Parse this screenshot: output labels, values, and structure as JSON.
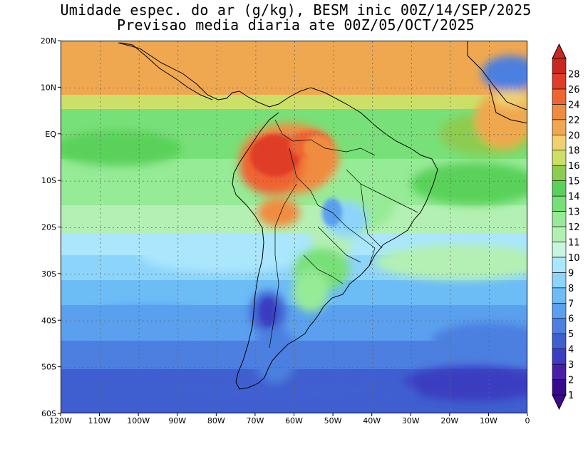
{
  "title_line1": "Umidade espec. do ar (g/kg), BESM inic 00Z/14/SEP/2025",
  "title_line2": "Previsao media diaria ate 00Z/05/OCT/2025",
  "map": {
    "lon_range": [
      -120,
      0
    ],
    "lat_range": [
      -60,
      20
    ],
    "lon_ticks": [
      "120W",
      "110W",
      "100W",
      "90W",
      "80W",
      "70W",
      "60W",
      "50W",
      "40W",
      "30W",
      "20W",
      "10W",
      "0"
    ],
    "lat_ticks": [
      "20N",
      "10N",
      "EQ",
      "10S",
      "20S",
      "30S",
      "40S",
      "50S",
      "60S"
    ],
    "gridlines": "dotted"
  },
  "colorbar": {
    "labels": [
      "1",
      "2",
      "3",
      "4",
      "5",
      "6",
      "7",
      "8",
      "9",
      "10",
      "11",
      "12",
      "13",
      "14",
      "15",
      "16",
      "18",
      "20",
      "22",
      "24",
      "26",
      "28"
    ],
    "colors": [
      "#3a0a8c",
      "#4a1fa8",
      "#3a3ec0",
      "#3f5fd0",
      "#4c7fe0",
      "#5aa0ee",
      "#6cbcf6",
      "#8cd4fa",
      "#aae6fc",
      "#c8f4e0",
      "#b4f0b4",
      "#96eb96",
      "#78e078",
      "#5ad25a",
      "#8ccc50",
      "#cce068",
      "#f0d070",
      "#f0a850",
      "#f08c40",
      "#f06432",
      "#e03c28",
      "#c8281e"
    ]
  }
}
